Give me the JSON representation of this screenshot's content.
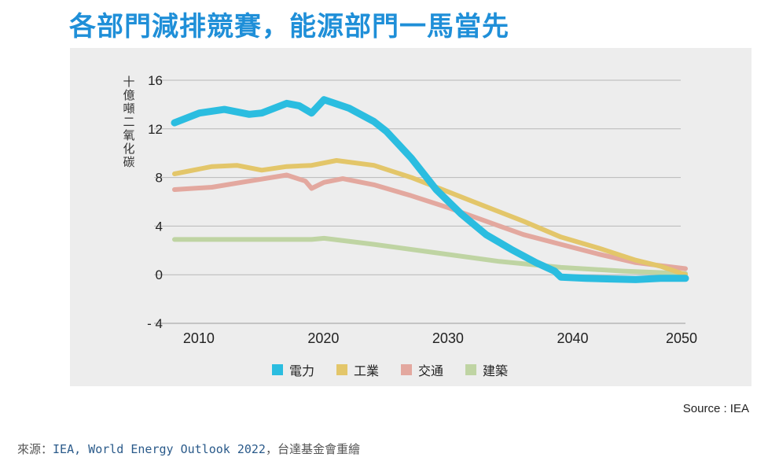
{
  "header": {
    "title": "各部門減排競賽，能源部門一馬當先"
  },
  "chart_data": {
    "type": "line",
    "ylabel": "十億噸二氧化碳",
    "ylim": [
      -4,
      16
    ],
    "yticks": [
      16,
      12,
      8,
      4,
      0,
      -4
    ],
    "ytick_labels": [
      "16",
      "12",
      "8",
      "4",
      "0",
      "- 4"
    ],
    "xlim": [
      2009,
      2050
    ],
    "xticks": [
      2010,
      2020,
      2030,
      2040,
      2050
    ],
    "xtick_labels": [
      "2010",
      "2020",
      "2030",
      "2040",
      "2050"
    ],
    "grid": true,
    "legend_position": "bottom",
    "series": [
      {
        "name": "電力",
        "color": "#2bbde0",
        "width": 9,
        "x": [
          2009,
          2011,
          2013,
          2015,
          2016,
          2018,
          2019,
          2020,
          2021,
          2023,
          2025,
          2026,
          2028,
          2030,
          2032,
          2034,
          2036,
          2038,
          2039.5,
          2040,
          2042,
          2044,
          2046,
          2048,
          2050
        ],
        "values": [
          12.5,
          13.3,
          13.6,
          13.2,
          13.3,
          14.1,
          13.9,
          13.3,
          14.4,
          13.7,
          12.6,
          11.8,
          9.6,
          7.0,
          5.0,
          3.3,
          2.1,
          1.0,
          0.3,
          -0.2,
          -0.3,
          -0.35,
          -0.4,
          -0.3,
          -0.3
        ]
      },
      {
        "name": "工業",
        "color": "#e3c66a",
        "width": 6,
        "x": [
          2009,
          2012,
          2014,
          2016,
          2018,
          2020,
          2022,
          2025,
          2028,
          2031,
          2034,
          2037,
          2040,
          2043,
          2046,
          2048,
          2050
        ],
        "values": [
          8.3,
          8.9,
          9.0,
          8.6,
          8.9,
          9.0,
          9.4,
          9.0,
          8.0,
          6.8,
          5.6,
          4.4,
          3.1,
          2.2,
          1.2,
          0.7,
          0.0
        ]
      },
      {
        "name": "交通",
        "color": "#e3a89f",
        "width": 6,
        "x": [
          2009,
          2012,
          2015,
          2018,
          2019.5,
          2020,
          2021,
          2022.5,
          2025,
          2028,
          2031,
          2034,
          2037,
          2040,
          2043,
          2046,
          2050
        ],
        "values": [
          7.0,
          7.2,
          7.7,
          8.2,
          7.7,
          7.1,
          7.6,
          7.9,
          7.4,
          6.5,
          5.5,
          4.4,
          3.3,
          2.5,
          1.7,
          1.0,
          0.5
        ]
      },
      {
        "name": "建築",
        "color": "#bfd4a3",
        "width": 6,
        "x": [
          2009,
          2015,
          2020,
          2021,
          2025,
          2030,
          2035,
          2040,
          2045,
          2050
        ],
        "values": [
          2.9,
          2.9,
          2.9,
          3.0,
          2.5,
          1.8,
          1.1,
          0.6,
          0.3,
          0.1
        ]
      }
    ]
  },
  "source": {
    "text": "Source : IEA"
  },
  "credit": {
    "prefix": "來源：",
    "highlight": "IEA, World Energy Outlook 2022",
    "suffix": "，台達基金會重繪"
  }
}
